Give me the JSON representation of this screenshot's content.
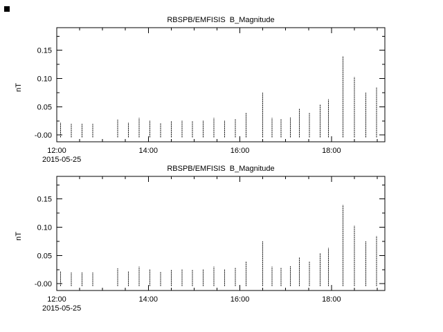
{
  "window": {
    "background": "#ffffff",
    "foreground": "#000000"
  },
  "chart_data": [
    {
      "type": "bar",
      "subtype": "spike-series",
      "title": "RBSPB/EMFISIS  B_Magnitude",
      "ylabel": "nT",
      "x_start_label": "2015-05-25",
      "ylim": [
        -0.012,
        0.19
      ],
      "yticks": [
        {
          "v": 0.0,
          "label": "-0.00"
        },
        {
          "v": 0.05,
          "label": "0.05"
        },
        {
          "v": 0.1,
          "label": "0.10"
        },
        {
          "v": 0.15,
          "label": "0.15"
        }
      ],
      "xlim_minutes": [
        0,
        430
      ],
      "xticks": [
        {
          "m": 0,
          "label": "12:00"
        },
        {
          "m": 120,
          "label": "14:00"
        },
        {
          "m": 240,
          "label": "16:00"
        },
        {
          "m": 360,
          "label": "18:00"
        }
      ],
      "x_minor_step": 30,
      "baseline": -0.004,
      "points": [
        [
          5,
          0.022
        ],
        [
          19,
          0.02
        ],
        [
          33,
          0.02
        ],
        [
          47,
          0.02
        ],
        [
          80,
          0.027
        ],
        [
          94,
          0.022
        ],
        [
          108,
          0.03
        ],
        [
          122,
          0.026
        ],
        [
          136,
          0.021
        ],
        [
          150,
          0.025
        ],
        [
          164,
          0.026
        ],
        [
          178,
          0.025
        ],
        [
          192,
          0.026
        ],
        [
          206,
          0.03
        ],
        [
          220,
          0.026
        ],
        [
          234,
          0.028
        ],
        [
          248,
          0.04
        ],
        [
          270,
          0.075
        ],
        [
          282,
          0.03
        ],
        [
          294,
          0.028
        ],
        [
          306,
          0.031
        ],
        [
          318,
          0.047
        ],
        [
          331,
          0.04
        ],
        [
          345,
          0.055
        ],
        [
          356,
          0.063
        ],
        [
          375,
          0.14
        ],
        [
          390,
          0.103
        ],
        [
          405,
          0.075
        ],
        [
          419,
          0.085
        ]
      ]
    },
    {
      "type": "bar",
      "subtype": "spike-series",
      "title": "RBSPB/EMFISIS  B_Magnitude",
      "ylabel": "nT",
      "x_start_label": "2015-05-25",
      "ylim": [
        -0.012,
        0.19
      ],
      "yticks": [
        {
          "v": 0.0,
          "label": "-0.00"
        },
        {
          "v": 0.05,
          "label": "0.05"
        },
        {
          "v": 0.1,
          "label": "0.10"
        },
        {
          "v": 0.15,
          "label": "0.15"
        }
      ],
      "xlim_minutes": [
        0,
        430
      ],
      "xticks": [
        {
          "m": 0,
          "label": "12:00"
        },
        {
          "m": 120,
          "label": "14:00"
        },
        {
          "m": 240,
          "label": "16:00"
        },
        {
          "m": 360,
          "label": "18:00"
        }
      ],
      "x_minor_step": 30,
      "baseline": -0.004,
      "points": [
        [
          5,
          0.022
        ],
        [
          19,
          0.02
        ],
        [
          33,
          0.02
        ],
        [
          47,
          0.02
        ],
        [
          80,
          0.027
        ],
        [
          94,
          0.022
        ],
        [
          108,
          0.03
        ],
        [
          122,
          0.026
        ],
        [
          136,
          0.021
        ],
        [
          150,
          0.025
        ],
        [
          164,
          0.026
        ],
        [
          178,
          0.025
        ],
        [
          192,
          0.026
        ],
        [
          206,
          0.03
        ],
        [
          220,
          0.026
        ],
        [
          234,
          0.028
        ],
        [
          248,
          0.04
        ],
        [
          270,
          0.075
        ],
        [
          282,
          0.03
        ],
        [
          294,
          0.028
        ],
        [
          306,
          0.031
        ],
        [
          318,
          0.047
        ],
        [
          331,
          0.04
        ],
        [
          345,
          0.055
        ],
        [
          356,
          0.063
        ],
        [
          375,
          0.14
        ],
        [
          390,
          0.103
        ],
        [
          405,
          0.075
        ],
        [
          419,
          0.085
        ]
      ]
    }
  ]
}
